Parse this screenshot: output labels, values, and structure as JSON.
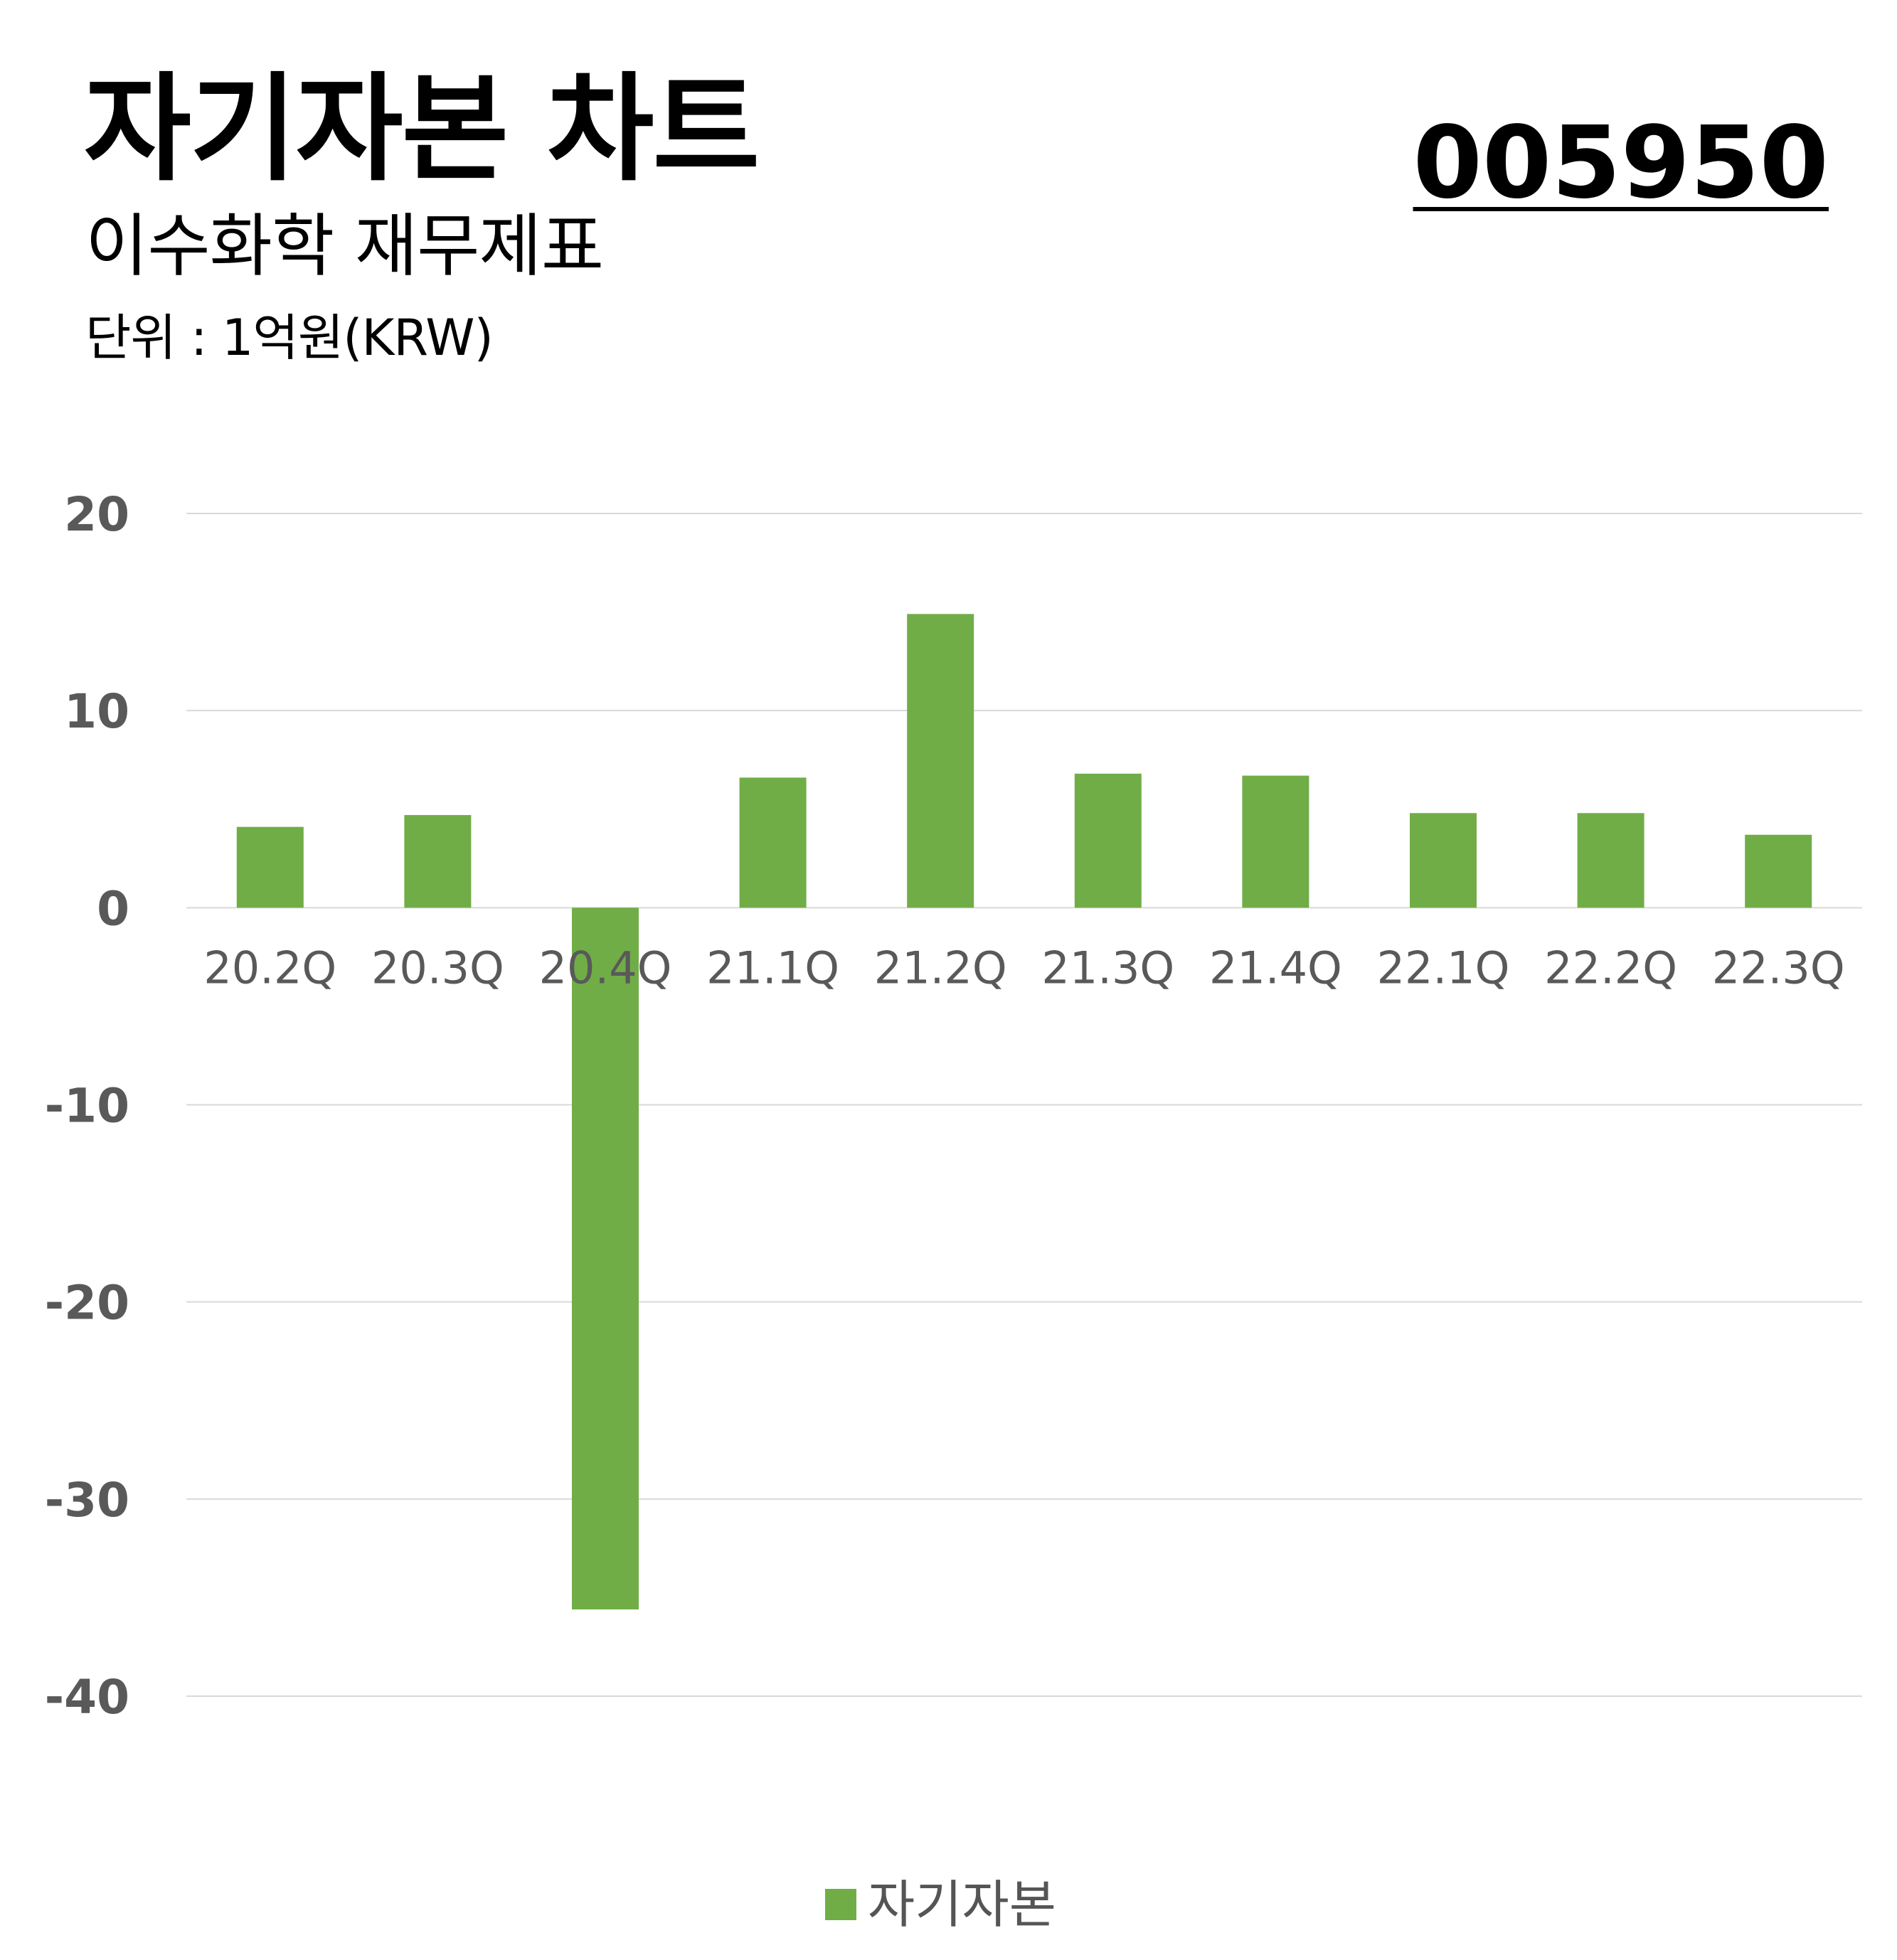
{
  "header": {
    "title": "자기자본 차트",
    "subtitle": "이수화학 재무제표",
    "unit": "단위 : 1억원(KRW)",
    "code": "005950"
  },
  "colors": {
    "bar": "#70AD47",
    "grid": "#D9D9D9",
    "tick_text": "#595959"
  },
  "chart_data": {
    "type": "bar",
    "categories": [
      "20.2Q",
      "20.3Q",
      "20.4Q",
      "21.1Q",
      "21.2Q",
      "21.3Q",
      "21.4Q",
      "22.1Q",
      "22.2Q",
      "22.3Q"
    ],
    "series": [
      {
        "name": "자기자본",
        "values": [
          4.1,
          4.7,
          -35.6,
          6.6,
          14.9,
          6.8,
          6.7,
          4.8,
          4.8,
          3.7
        ]
      }
    ],
    "ylim": [
      -40,
      20
    ],
    "yticks": [
      20,
      10,
      0,
      -10,
      -20,
      -30,
      -40
    ],
    "grid": true,
    "legend": "bottom-center"
  }
}
